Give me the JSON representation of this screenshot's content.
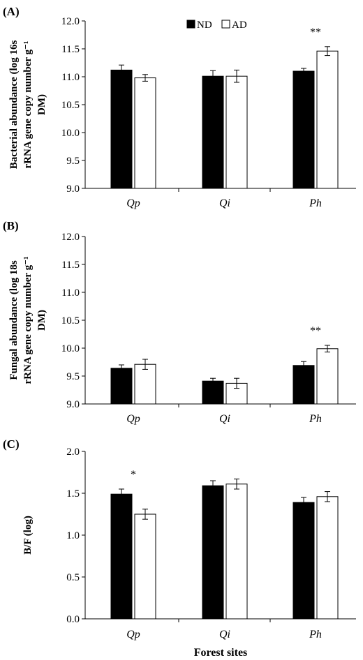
{
  "chart_data": [
    {
      "type": "bar",
      "panel_label": "(A)",
      "ylabel_lines": [
        "Bacterial abundance (log 16s",
        "rRNA gene copy number g⁻¹",
        "DM)"
      ],
      "xlabel": "",
      "categories": [
        "Qp",
        "Qi",
        "Ph"
      ],
      "ylim": [
        9.0,
        12.0
      ],
      "yticks": [
        "9.0",
        "9.5",
        "10.0",
        "10.5",
        "11.0",
        "11.5",
        "12.0"
      ],
      "series": [
        {
          "name": "ND",
          "color": "#000000",
          "values": [
            11.12,
            11.01,
            11.1
          ],
          "errors": [
            0.09,
            0.1,
            0.05
          ]
        },
        {
          "name": "AD",
          "color": "#ffffff",
          "values": [
            10.98,
            11.01,
            11.46
          ],
          "errors": [
            0.06,
            0.11,
            0.08
          ]
        }
      ],
      "significance": [
        {
          "category": "Ph",
          "text": "**"
        }
      ],
      "legend": {
        "show": true,
        "placement": "top-center"
      }
    },
    {
      "type": "bar",
      "panel_label": "(B)",
      "ylabel_lines": [
        "Fungal abundance (log 18s",
        "rRNA gene copy number g⁻¹",
        "DM)"
      ],
      "xlabel": "",
      "categories": [
        "Qp",
        "Qi",
        "Ph"
      ],
      "ylim": [
        9.0,
        12.0
      ],
      "yticks": [
        "9.0",
        "9.5",
        "10.0",
        "10.5",
        "11.0",
        "11.5",
        "12.0"
      ],
      "series": [
        {
          "name": "ND",
          "color": "#000000",
          "values": [
            9.64,
            9.41,
            9.69
          ],
          "errors": [
            0.06,
            0.05,
            0.07
          ]
        },
        {
          "name": "AD",
          "color": "#ffffff",
          "values": [
            9.71,
            9.37,
            9.99
          ],
          "errors": [
            0.09,
            0.09,
            0.06
          ]
        }
      ],
      "significance": [
        {
          "category": "Ph",
          "text": "**"
        }
      ],
      "legend": {
        "show": false
      }
    },
    {
      "type": "bar",
      "panel_label": "(C)",
      "ylabel_lines": [
        "B/F (log)"
      ],
      "xlabel": "Forest sites",
      "categories": [
        "Qp",
        "Qi",
        "Ph"
      ],
      "ylim": [
        0.0,
        2.0
      ],
      "yticks": [
        "0.0",
        "0.5",
        "1.0",
        "1.5",
        "2.0"
      ],
      "series": [
        {
          "name": "ND",
          "color": "#000000",
          "values": [
            1.49,
            1.59,
            1.39
          ],
          "errors": [
            0.06,
            0.06,
            0.06
          ]
        },
        {
          "name": "AD",
          "color": "#ffffff",
          "values": [
            1.25,
            1.61,
            1.46
          ],
          "errors": [
            0.06,
            0.06,
            0.06
          ]
        }
      ],
      "significance": [
        {
          "category": "Qp",
          "text": "*"
        }
      ],
      "legend": {
        "show": false
      }
    }
  ]
}
